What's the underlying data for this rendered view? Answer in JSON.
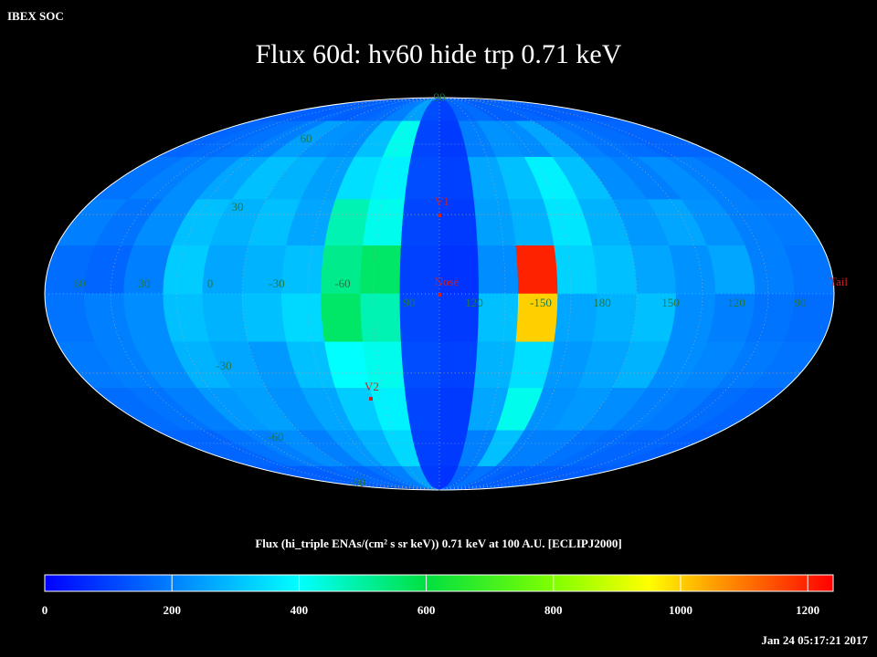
{
  "header": {
    "org": "IBEX SOC",
    "title": "Flux 60d: hv60 hide trp 0.71 keV",
    "timestamp": "Jan 24 05:17:21 2017"
  },
  "map": {
    "projection": "mollweide",
    "flux": [
      [
        150,
        150,
        150,
        160,
        150,
        160,
        170,
        200,
        250,
        120,
        100,
        160,
        170,
        150,
        150,
        160,
        150,
        150,
        150,
        150
      ],
      [
        160,
        170,
        180,
        200,
        250,
        230,
        220,
        300,
        420,
        110,
        90,
        200,
        230,
        220,
        260,
        200,
        180,
        170,
        160,
        160
      ],
      [
        180,
        200,
        220,
        260,
        300,
        280,
        250,
        350,
        380,
        120,
        100,
        260,
        300,
        380,
        300,
        220,
        200,
        220,
        200,
        180
      ],
      [
        200,
        180,
        220,
        300,
        280,
        300,
        260,
        480,
        420,
        110,
        90,
        250,
        280,
        360,
        280,
        240,
        260,
        230,
        200,
        190
      ],
      [
        170,
        160,
        200,
        320,
        260,
        280,
        300,
        520,
        560,
        100,
        80,
        220,
        1200,
        330,
        300,
        260,
        230,
        260,
        200,
        180
      ],
      [
        180,
        200,
        220,
        300,
        280,
        300,
        340,
        560,
        480,
        110,
        90,
        300,
        1000,
        260,
        280,
        300,
        220,
        200,
        180,
        170
      ],
      [
        190,
        200,
        220,
        280,
        260,
        240,
        300,
        400,
        420,
        120,
        100,
        280,
        350,
        240,
        260,
        280,
        220,
        210,
        190,
        180
      ],
      [
        170,
        180,
        200,
        240,
        250,
        230,
        260,
        320,
        380,
        110,
        90,
        260,
        420,
        230,
        240,
        220,
        200,
        190,
        170,
        160
      ],
      [
        160,
        160,
        180,
        200,
        220,
        200,
        240,
        280,
        340,
        100,
        90,
        200,
        300,
        200,
        200,
        180,
        170,
        160,
        160,
        150
      ],
      [
        150,
        150,
        150,
        160,
        170,
        160,
        180,
        200,
        250,
        90,
        80,
        160,
        180,
        160,
        150,
        150,
        150,
        150,
        150,
        150
      ]
    ],
    "lat_labels": [
      "90",
      "60",
      "30",
      "-30",
      "-60",
      "-90"
    ],
    "lon_labels": [
      "60",
      "30",
      "0",
      "-30",
      "-60",
      "90",
      "120",
      "-150",
      "180",
      "150",
      "120",
      "90"
    ],
    "markers": [
      {
        "label": "V1"
      },
      {
        "label": "Nose"
      },
      {
        "label": "V2"
      },
      {
        "label": "Tail"
      }
    ],
    "marker_color": "#cc2222",
    "graticule_color": "#227744"
  },
  "colorbar": {
    "label": "Flux (hi_triple ENAs/(cm² s sr keV)) 0.71 keV at 100 A.U. [ECLIPJ2000]",
    "lim": [
      0,
      1240
    ],
    "ticks": [
      0,
      200,
      400,
      600,
      800,
      1000,
      1200
    ],
    "colorscale": [
      {
        "value": 0,
        "color": "#0000ff"
      },
      {
        "value": 200,
        "color": "#0080ff"
      },
      {
        "value": 400,
        "color": "#00ffff"
      },
      {
        "value": 600,
        "color": "#00e040"
      },
      {
        "value": 800,
        "color": "#80ff00"
      },
      {
        "value": 950,
        "color": "#ffff00"
      },
      {
        "value": 1050,
        "color": "#ffa000"
      },
      {
        "value": 1240,
        "color": "#ff0000"
      }
    ]
  }
}
